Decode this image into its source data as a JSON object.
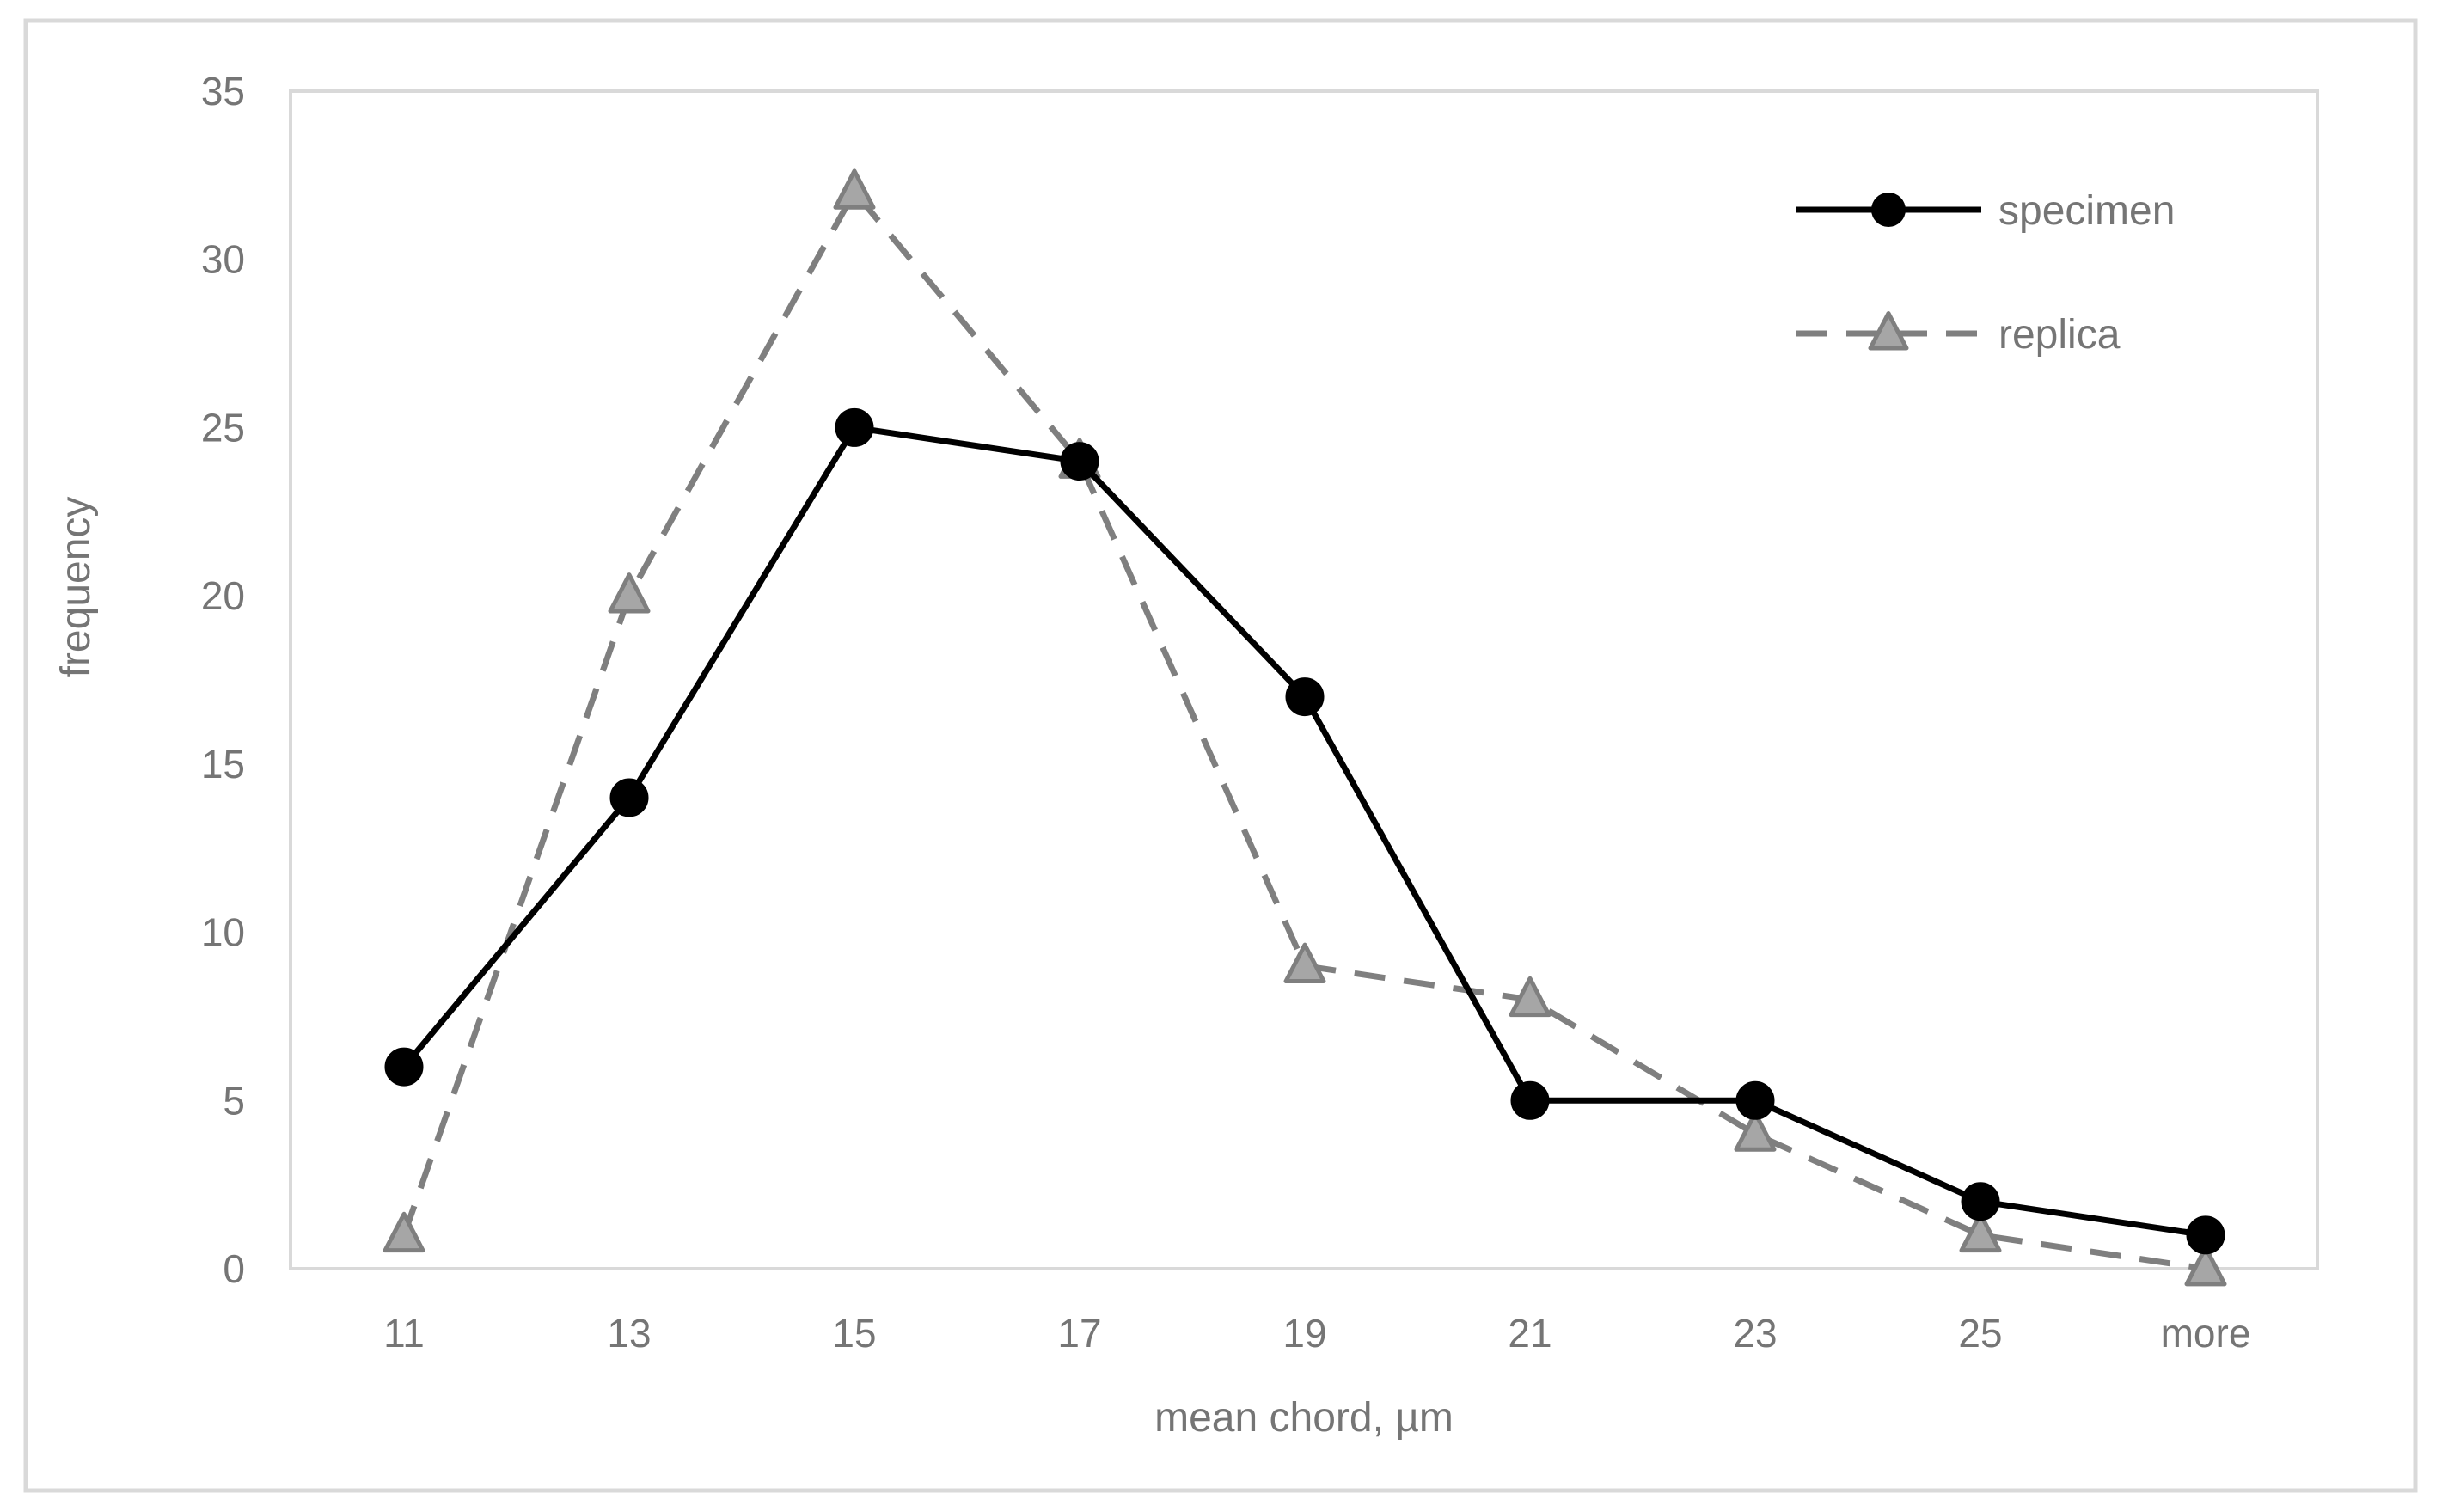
{
  "chart_data": {
    "type": "line",
    "title": "",
    "xlabel": "mean chord, µm",
    "ylabel": "frequency",
    "categories": [
      "11",
      "13",
      "15",
      "17",
      "19",
      "21",
      "23",
      "25",
      "more"
    ],
    "ylim": [
      0,
      35
    ],
    "yticks": [
      "0",
      "5",
      "10",
      "15",
      "20",
      "25",
      "30",
      "35"
    ],
    "grid": false,
    "legend_position": "top-right",
    "series": [
      {
        "name": "specimen",
        "values": [
          6,
          14,
          25,
          24,
          17,
          5,
          5,
          2,
          1
        ],
        "color": "#000000",
        "line": "solid",
        "marker": "circle"
      },
      {
        "name": "replica",
        "values": [
          1,
          20,
          32,
          24,
          9,
          8,
          4,
          1,
          0
        ],
        "color": "#7f7f7f",
        "marker_fill": "#a6a6a6",
        "line": "dashed",
        "marker": "triangle"
      }
    ]
  }
}
